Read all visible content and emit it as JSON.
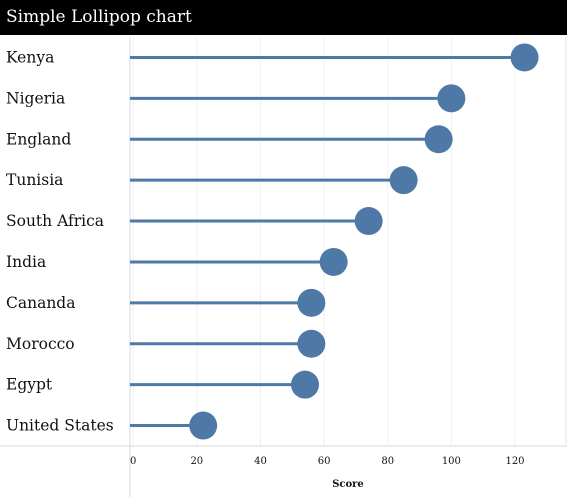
{
  "chart_data": {
    "type": "lollipop",
    "title": "Simple Lollipop chart",
    "xlabel": "Score",
    "ylabel": "",
    "xlim": [
      -1,
      131
    ],
    "xticks": [
      0,
      20,
      40,
      60,
      80,
      100,
      120
    ],
    "grid": true,
    "categories": [
      "Kenya",
      "Nigeria",
      "England",
      "Tunisia",
      "South Africa",
      "India",
      "Cananda",
      "Morocco",
      "Egypt",
      "United States"
    ],
    "values": [
      123,
      100,
      96,
      85,
      74,
      63,
      56,
      56,
      54,
      22
    ],
    "color": "#4e79a7"
  }
}
